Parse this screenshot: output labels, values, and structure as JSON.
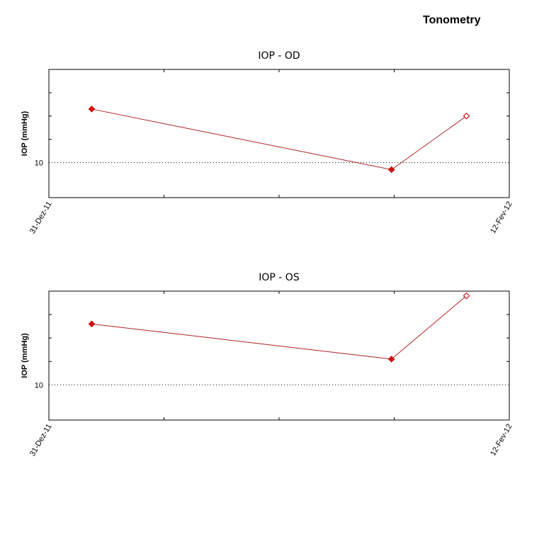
{
  "title": "Tonometry",
  "colors": {
    "series": "#cc1111",
    "series_line": "#b02020",
    "frame": "#000000"
  },
  "chart_data": [
    {
      "type": "line",
      "title": "IOP - OD",
      "ylabel": "IOP (mmHg)",
      "xlabel": "",
      "x_ticks": [
        "31-Dez-11",
        "12-Fev-12"
      ],
      "x_range": [
        "2011-12-31",
        "2012-02-12"
      ],
      "y_ticks": [
        10
      ],
      "ylim": [
        8.5,
        14
      ],
      "grid": false,
      "ref_line": 10,
      "series": [
        {
          "points": [
            {
              "x": "2012-01-04",
              "y": 12.3,
              "marker": "filled"
            },
            {
              "x": "2012-02-01",
              "y": 9.7,
              "marker": "filled"
            },
            {
              "x": "2012-02-08",
              "y": 12.0,
              "marker": "open"
            }
          ]
        }
      ]
    },
    {
      "type": "line",
      "title": "IOP - OS",
      "ylabel": "IOP (mmHg)",
      "xlabel": "",
      "x_ticks": [
        "31-Dez-11",
        "12-Fev-12"
      ],
      "x_range": [
        "2011-12-31",
        "2012-02-12"
      ],
      "y_ticks": [
        10
      ],
      "ylim": [
        8.5,
        14
      ],
      "grid": false,
      "ref_line": 10,
      "series": [
        {
          "points": [
            {
              "x": "2012-01-04",
              "y": 12.6,
              "marker": "filled"
            },
            {
              "x": "2012-02-01",
              "y": 11.1,
              "marker": "filled"
            },
            {
              "x": "2012-02-08",
              "y": 13.8,
              "marker": "open"
            }
          ]
        }
      ]
    }
  ]
}
